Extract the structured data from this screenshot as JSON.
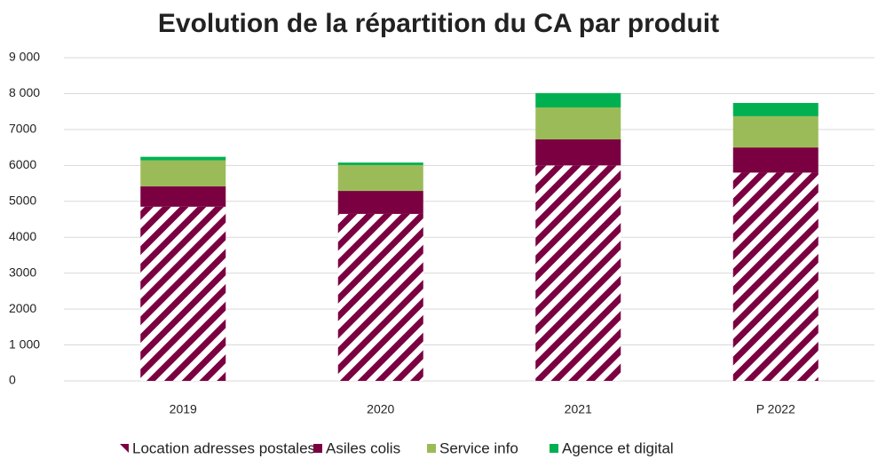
{
  "chart_data": {
    "type": "stacked_bar",
    "title": "Evolution de la répartition du CA par produit",
    "categories": [
      "2019",
      "2020",
      "2021",
      "P 2022"
    ],
    "series": [
      {
        "name": "Location adresses postales",
        "color": "#7b0041",
        "hatch": true,
        "values": [
          4850,
          4650,
          6000,
          5800
        ]
      },
      {
        "name": "Asiles colis",
        "color": "#7b0041",
        "values": [
          570,
          640,
          725,
          700
        ]
      },
      {
        "name": "Service info",
        "color": "#9bbb59",
        "values": [
          720,
          720,
          890,
          870
        ]
      },
      {
        "name": "Agence et digital",
        "color": "#00b050",
        "values": [
          100,
          70,
          400,
          370
        ]
      }
    ],
    "ylim": [
      0,
      9000
    ],
    "yticks": [
      0,
      {
        "value": 1000,
        "label": "1 000"
      },
      2000,
      3000,
      4000,
      5000,
      6000,
      7000,
      {
        "value": 8000,
        "label": "8 000"
      },
      {
        "value": 9000,
        "label": "9 000"
      }
    ],
    "grid": true,
    "legend": "bottom"
  }
}
